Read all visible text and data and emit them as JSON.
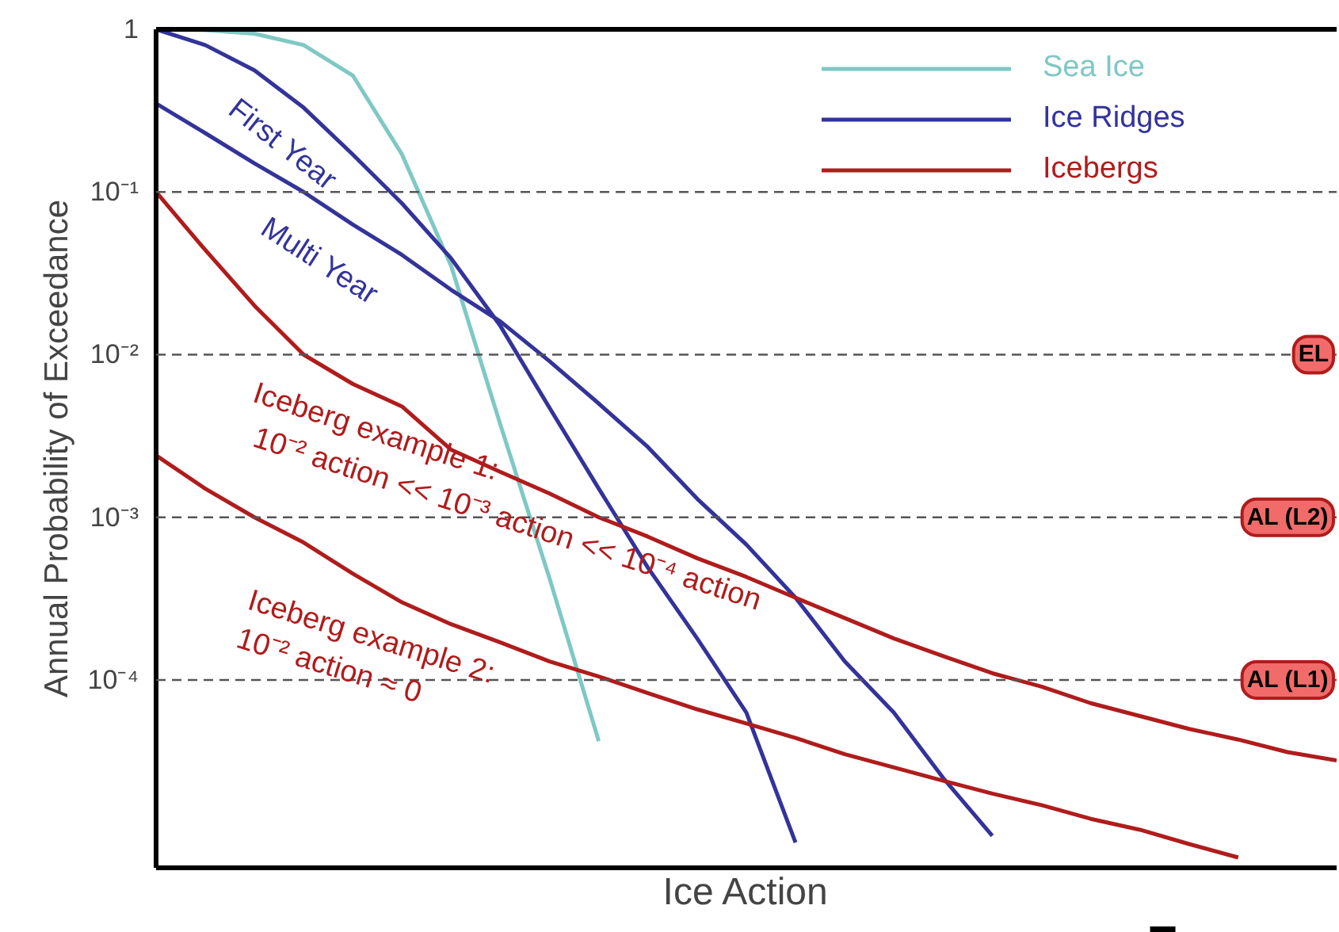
{
  "chart_data": {
    "type": "line",
    "log": "y",
    "xlabel": "Ice Action",
    "ylabel": "Annual Probability of Exceedance",
    "categories": [
      null,
      null,
      null,
      null,
      null,
      null,
      null,
      null,
      null,
      null,
      null,
      null,
      null,
      null,
      null,
      null,
      null,
      null,
      null,
      null,
      null,
      null,
      null,
      null,
      null
    ],
    "ylim": [
      7e-06,
      1
    ],
    "yticks": [
      1,
      {
        "value": 0.1,
        "label": "10⁻¹"
      },
      {
        "value": 0.01,
        "label": "10⁻²"
      },
      {
        "value": 0.001,
        "label": "10⁻³"
      },
      {
        "value": 0.0001,
        "label": "10⁻⁴"
      }
    ],
    "series": [
      {
        "name": "Sea Ice",
        "color": "#7fc8c4",
        "values": [
          1,
          0.99,
          0.94,
          0.8,
          0.52,
          0.17,
          0.035,
          0.0037,
          0.00042,
          4.2e-05,
          null,
          null,
          null,
          null,
          null,
          null,
          null,
          null,
          null,
          null,
          null,
          null,
          null,
          null,
          null
        ]
      },
      {
        "name": "Ice Ridges",
        "color": "#33339a",
        "values": [
          1,
          0.8,
          0.56,
          0.33,
          0.17,
          0.085,
          0.039,
          0.015,
          0.0047,
          0.0015,
          0.00049,
          0.00018,
          6.3e-05,
          1e-05,
          null,
          null,
          null,
          null,
          null,
          null,
          null,
          null,
          null,
          null,
          null
        ]
      },
      {
        "color": "#33339a",
        "values": [
          0.35,
          0.23,
          0.15,
          0.1,
          0.063,
          0.041,
          0.025,
          0.016,
          0.0091,
          0.005,
          0.0027,
          0.0013,
          0.00068,
          0.00032,
          0.00013,
          6.3e-05,
          2.5e-05,
          1.1e-05,
          null,
          null,
          null,
          null,
          null,
          null,
          null
        ]
      },
      {
        "name": "Icebergs",
        "color": "#b01c1c",
        "values": [
          0.1,
          0.044,
          0.02,
          0.01,
          0.0066,
          0.0048,
          0.0026,
          0.0019,
          0.0014,
          0.001,
          0.00076,
          0.00056,
          0.00043,
          0.00032,
          0.00024,
          0.00018,
          0.00014,
          0.00011,
          9.1e-05,
          7.2e-05,
          6e-05,
          5e-05,
          4.3e-05,
          3.6e-05,
          3.2e-05
        ]
      },
      {
        "color": "#b01c1c",
        "values": [
          0.0024,
          0.0015,
          0.001,
          0.0007,
          0.00045,
          0.0003,
          0.00022,
          0.00017,
          0.00013,
          0.000105,
          8.3e-05,
          6.6e-05,
          5.4e-05,
          4.4e-05,
          3.5e-05,
          2.9e-05,
          2.4e-05,
          2e-05,
          1.7e-05,
          1.4e-05,
          1.2e-05,
          9.8e-06,
          8.1e-06,
          null,
          null
        ]
      }
    ],
    "ref_lines": [
      {
        "axis": "y",
        "value": 0.1,
        "label": null,
        "color": "#555555",
        "line_style": "dashed"
      },
      {
        "axis": "y",
        "value": 0.01,
        "label": "EL",
        "color": "#555555",
        "line_style": "dashed"
      },
      {
        "axis": "y",
        "value": 0.001,
        "label": "AL (L2)",
        "color": "#555555",
        "line_style": "dashed"
      },
      {
        "axis": "y",
        "value": 0.0001,
        "label": "AL (L1)",
        "color": "#555555",
        "line_style": "dashed"
      }
    ],
    "annotations": [
      "First Year",
      "Multi Year",
      "Iceberg example 1:",
      "10⁻² action << 10⁻³ action << 10⁻⁴ action",
      "Iceberg example 2: 10⁻² action ≈ 0"
    ],
    "legend": "top right",
    "grid": false,
    "marker": "none",
    "line_style": "solid"
  }
}
